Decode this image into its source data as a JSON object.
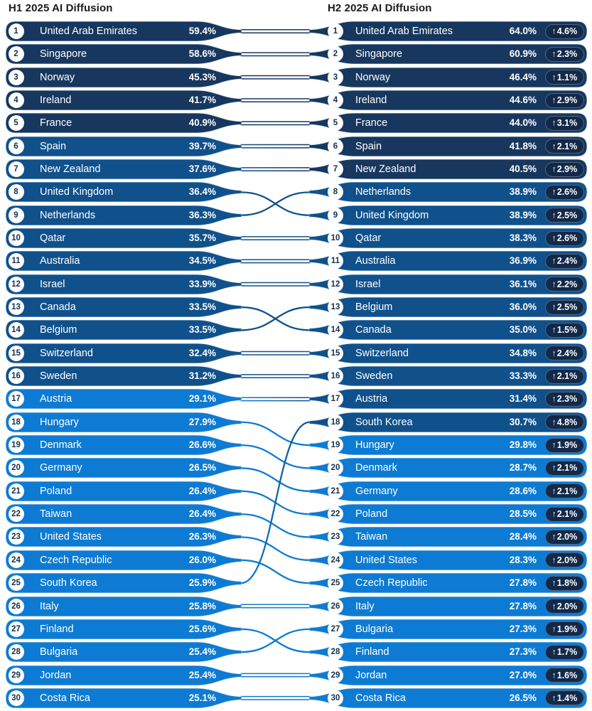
{
  "titles": {
    "left": "H1 2025 AI Diffusion",
    "right": "H2 2025 AI Diffusion"
  },
  "icons": {
    "up_arrow": "↑"
  },
  "colors": {
    "dark": "#17375E",
    "medium": "#10518C",
    "bright": "#0D7BD3",
    "badge_bg": "#132949",
    "pill_edge": "#cfe2f1",
    "circle_bg": "#ffffff",
    "rank_text": "#14304F",
    "title_text": "#1b1b1b"
  },
  "chart_data": {
    "type": "bump-ranking",
    "title_left": "H1 2025 AI Diffusion",
    "title_right": "H2 2025 AI Diffusion",
    "value_unit": "%",
    "color_rule": "value>=40 dark navy, 30-40 medium blue, <30 bright blue",
    "h1": [
      {
        "rank": 1,
        "country": "United Arab Emirates",
        "value": 59.4,
        "label": "59.4%"
      },
      {
        "rank": 2,
        "country": "Singapore",
        "value": 58.6,
        "label": "58.6%"
      },
      {
        "rank": 3,
        "country": "Norway",
        "value": 45.3,
        "label": "45.3%"
      },
      {
        "rank": 4,
        "country": "Ireland",
        "value": 41.7,
        "label": "41.7%"
      },
      {
        "rank": 5,
        "country": "France",
        "value": 40.9,
        "label": "40.9%"
      },
      {
        "rank": 6,
        "country": "Spain",
        "value": 39.7,
        "label": "39.7%"
      },
      {
        "rank": 7,
        "country": "New Zealand",
        "value": 37.6,
        "label": "37.6%"
      },
      {
        "rank": 8,
        "country": "United Kingdom",
        "value": 36.4,
        "label": "36.4%"
      },
      {
        "rank": 9,
        "country": "Netherlands",
        "value": 36.3,
        "label": "36.3%"
      },
      {
        "rank": 10,
        "country": "Qatar",
        "value": 35.7,
        "label": "35.7%"
      },
      {
        "rank": 11,
        "country": "Australia",
        "value": 34.5,
        "label": "34.5%"
      },
      {
        "rank": 12,
        "country": "Israel",
        "value": 33.9,
        "label": "33.9%"
      },
      {
        "rank": 13,
        "country": "Canada",
        "value": 33.5,
        "label": "33.5%"
      },
      {
        "rank": 14,
        "country": "Belgium",
        "value": 33.5,
        "label": "33.5%"
      },
      {
        "rank": 15,
        "country": "Switzerland",
        "value": 32.4,
        "label": "32.4%"
      },
      {
        "rank": 16,
        "country": "Sweden",
        "value": 31.2,
        "label": "31.2%"
      },
      {
        "rank": 17,
        "country": "Austria",
        "value": 29.1,
        "label": "29.1%"
      },
      {
        "rank": 18,
        "country": "Hungary",
        "value": 27.9,
        "label": "27.9%"
      },
      {
        "rank": 19,
        "country": "Denmark",
        "value": 26.6,
        "label": "26.6%"
      },
      {
        "rank": 20,
        "country": "Germany",
        "value": 26.5,
        "label": "26.5%"
      },
      {
        "rank": 21,
        "country": "Poland",
        "value": 26.4,
        "label": "26.4%"
      },
      {
        "rank": 22,
        "country": "Taiwan",
        "value": 26.4,
        "label": "26.4%"
      },
      {
        "rank": 23,
        "country": "United States",
        "value": 26.3,
        "label": "26.3%"
      },
      {
        "rank": 24,
        "country": "Czech Republic",
        "value": 26.0,
        "label": "26.0%"
      },
      {
        "rank": 25,
        "country": "South Korea",
        "value": 25.9,
        "label": "25.9%"
      },
      {
        "rank": 26,
        "country": "Italy",
        "value": 25.8,
        "label": "25.8%"
      },
      {
        "rank": 27,
        "country": "Finland",
        "value": 25.6,
        "label": "25.6%"
      },
      {
        "rank": 28,
        "country": "Bulgaria",
        "value": 25.4,
        "label": "25.4%"
      },
      {
        "rank": 29,
        "country": "Jordan",
        "value": 25.4,
        "label": "25.4%"
      },
      {
        "rank": 30,
        "country": "Costa Rica",
        "value": 25.1,
        "label": "25.1%"
      }
    ],
    "h2": [
      {
        "rank": 1,
        "country": "United Arab Emirates",
        "value": 64.0,
        "label": "64.0%",
        "delta": 4.6,
        "delta_label": "4.6%"
      },
      {
        "rank": 2,
        "country": "Singapore",
        "value": 60.9,
        "label": "60.9%",
        "delta": 2.3,
        "delta_label": "2.3%"
      },
      {
        "rank": 3,
        "country": "Norway",
        "value": 46.4,
        "label": "46.4%",
        "delta": 1.1,
        "delta_label": "1.1%"
      },
      {
        "rank": 4,
        "country": "Ireland",
        "value": 44.6,
        "label": "44.6%",
        "delta": 2.9,
        "delta_label": "2.9%"
      },
      {
        "rank": 5,
        "country": "France",
        "value": 44.0,
        "label": "44.0%",
        "delta": 3.1,
        "delta_label": "3.1%"
      },
      {
        "rank": 6,
        "country": "Spain",
        "value": 41.8,
        "label": "41.8%",
        "delta": 2.1,
        "delta_label": "2.1%"
      },
      {
        "rank": 7,
        "country": "New Zealand",
        "value": 40.5,
        "label": "40.5%",
        "delta": 2.9,
        "delta_label": "2.9%"
      },
      {
        "rank": 8,
        "country": "Netherlands",
        "value": 38.9,
        "label": "38.9%",
        "delta": 2.6,
        "delta_label": "2.6%"
      },
      {
        "rank": 9,
        "country": "United Kingdom",
        "value": 38.9,
        "label": "38.9%",
        "delta": 2.5,
        "delta_label": "2.5%"
      },
      {
        "rank": 10,
        "country": "Qatar",
        "value": 38.3,
        "label": "38.3%",
        "delta": 2.6,
        "delta_label": "2.6%"
      },
      {
        "rank": 11,
        "country": "Australia",
        "value": 36.9,
        "label": "36.9%",
        "delta": 2.4,
        "delta_label": "2.4%"
      },
      {
        "rank": 12,
        "country": "Israel",
        "value": 36.1,
        "label": "36.1%",
        "delta": 2.2,
        "delta_label": "2.2%"
      },
      {
        "rank": 13,
        "country": "Belgium",
        "value": 36.0,
        "label": "36.0%",
        "delta": 2.5,
        "delta_label": "2.5%"
      },
      {
        "rank": 14,
        "country": "Canada",
        "value": 35.0,
        "label": "35.0%",
        "delta": 1.5,
        "delta_label": "1.5%"
      },
      {
        "rank": 15,
        "country": "Switzerland",
        "value": 34.8,
        "label": "34.8%",
        "delta": 2.4,
        "delta_label": "2.4%"
      },
      {
        "rank": 16,
        "country": "Sweden",
        "value": 33.3,
        "label": "33.3%",
        "delta": 2.1,
        "delta_label": "2.1%"
      },
      {
        "rank": 17,
        "country": "Austria",
        "value": 31.4,
        "label": "31.4%",
        "delta": 2.3,
        "delta_label": "2.3%"
      },
      {
        "rank": 18,
        "country": "South Korea",
        "value": 30.7,
        "label": "30.7%",
        "delta": 4.8,
        "delta_label": "4.8%"
      },
      {
        "rank": 19,
        "country": "Hungary",
        "value": 29.8,
        "label": "29.8%",
        "delta": 1.9,
        "delta_label": "1.9%"
      },
      {
        "rank": 20,
        "country": "Denmark",
        "value": 28.7,
        "label": "28.7%",
        "delta": 2.1,
        "delta_label": "2.1%"
      },
      {
        "rank": 21,
        "country": "Germany",
        "value": 28.6,
        "label": "28.6%",
        "delta": 2.1,
        "delta_label": "2.1%"
      },
      {
        "rank": 22,
        "country": "Poland",
        "value": 28.5,
        "label": "28.5%",
        "delta": 2.1,
        "delta_label": "2.1%"
      },
      {
        "rank": 23,
        "country": "Taiwan",
        "value": 28.4,
        "label": "28.4%",
        "delta": 2.0,
        "delta_label": "2.0%"
      },
      {
        "rank": 24,
        "country": "United States",
        "value": 28.3,
        "label": "28.3%",
        "delta": 2.0,
        "delta_label": "2.0%"
      },
      {
        "rank": 25,
        "country": "Czech Republic",
        "value": 27.8,
        "label": "27.8%",
        "delta": 1.8,
        "delta_label": "1.8%"
      },
      {
        "rank": 26,
        "country": "Italy",
        "value": 27.8,
        "label": "27.8%",
        "delta": 2.0,
        "delta_label": "2.0%"
      },
      {
        "rank": 27,
        "country": "Bulgaria",
        "value": 27.3,
        "label": "27.3%",
        "delta": 1.9,
        "delta_label": "1.9%"
      },
      {
        "rank": 28,
        "country": "Finland",
        "value": 27.3,
        "label": "27.3%",
        "delta": 1.7,
        "delta_label": "1.7%"
      },
      {
        "rank": 29,
        "country": "Jordan",
        "value": 27.0,
        "label": "27.0%",
        "delta": 1.6,
        "delta_label": "1.6%"
      },
      {
        "rank": 30,
        "country": "Costa Rica",
        "value": 26.5,
        "label": "26.5%",
        "delta": 1.4,
        "delta_label": "1.4%"
      }
    ]
  }
}
